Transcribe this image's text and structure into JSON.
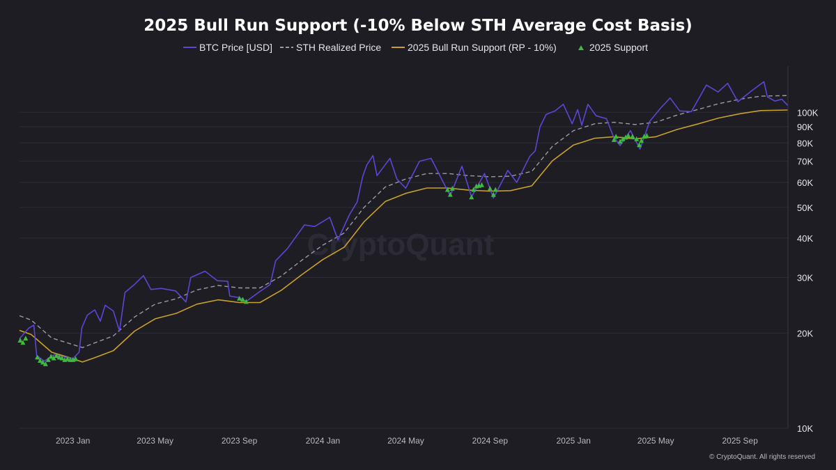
{
  "chart_data": {
    "type": "line",
    "title": "2025 Bull Run Support (-10% Below STH Average Cost Basis)",
    "y_scale": "log",
    "ylim": [
      10000,
      140000
    ],
    "y_ticks": [
      {
        "value": 10000,
        "label": "10K"
      },
      {
        "value": 20000,
        "label": "20K"
      },
      {
        "value": 30000,
        "label": "30K"
      },
      {
        "value": 40000,
        "label": "40K"
      },
      {
        "value": 50000,
        "label": "50K"
      },
      {
        "value": 60000,
        "label": "60K"
      },
      {
        "value": 70000,
        "label": "70K"
      },
      {
        "value": 80000,
        "label": "80K"
      },
      {
        "value": 90000,
        "label": "90K"
      },
      {
        "value": 100000,
        "label": "100K"
      }
    ],
    "xlim": [
      "2022-10-15",
      "2025-11-10"
    ],
    "x_ticks": [
      {
        "date": "2023-01-01",
        "label": "2023 Jan"
      },
      {
        "date": "2023-05-01",
        "label": "2023 May"
      },
      {
        "date": "2023-09-01",
        "label": "2023 Sep"
      },
      {
        "date": "2024-01-01",
        "label": "2024 Jan"
      },
      {
        "date": "2024-05-01",
        "label": "2024 May"
      },
      {
        "date": "2024-09-01",
        "label": "2024 Sep"
      },
      {
        "date": "2025-01-01",
        "label": "2025 Jan"
      },
      {
        "date": "2025-05-01",
        "label": "2025 May"
      },
      {
        "date": "2025-09-01",
        "label": "2025 Sep"
      }
    ],
    "legend_position": "top-center",
    "series": [
      {
        "name": "BTC Price [USD]",
        "color": "#5b47d6",
        "style": "solid",
        "points": [
          [
            "2022-10-15",
            19200
          ],
          [
            "2022-10-28",
            20700
          ],
          [
            "2022-11-05",
            21200
          ],
          [
            "2022-11-09",
            17000
          ],
          [
            "2022-11-20",
            16300
          ],
          [
            "2022-12-05",
            17100
          ],
          [
            "2022-12-20",
            16800
          ],
          [
            "2023-01-01",
            16600
          ],
          [
            "2023-01-10",
            17400
          ],
          [
            "2023-01-14",
            20800
          ],
          [
            "2023-01-22",
            22800
          ],
          [
            "2023-02-02",
            23700
          ],
          [
            "2023-02-10",
            21800
          ],
          [
            "2023-02-17",
            24500
          ],
          [
            "2023-03-01",
            23500
          ],
          [
            "2023-03-10",
            20300
          ],
          [
            "2023-03-18",
            26900
          ],
          [
            "2023-03-31",
            28400
          ],
          [
            "2023-04-14",
            30400
          ],
          [
            "2023-04-25",
            27500
          ],
          [
            "2023-05-10",
            27700
          ],
          [
            "2023-05-31",
            27200
          ],
          [
            "2023-06-15",
            25100
          ],
          [
            "2023-06-22",
            30000
          ],
          [
            "2023-07-13",
            31400
          ],
          [
            "2023-07-31",
            29300
          ],
          [
            "2023-08-15",
            29200
          ],
          [
            "2023-08-18",
            26200
          ],
          [
            "2023-09-01",
            25900
          ],
          [
            "2023-09-11",
            25200
          ],
          [
            "2023-09-30",
            27000
          ],
          [
            "2023-10-16",
            28500
          ],
          [
            "2023-10-24",
            33900
          ],
          [
            "2023-11-10",
            37000
          ],
          [
            "2023-12-05",
            44000
          ],
          [
            "2023-12-20",
            43500
          ],
          [
            "2024-01-11",
            46500
          ],
          [
            "2024-01-23",
            39500
          ],
          [
            "2024-02-09",
            47500
          ],
          [
            "2024-02-20",
            52000
          ],
          [
            "2024-02-28",
            62500
          ],
          [
            "2024-03-05",
            68000
          ],
          [
            "2024-03-14",
            73000
          ],
          [
            "2024-03-20",
            63000
          ],
          [
            "2024-04-08",
            71500
          ],
          [
            "2024-04-18",
            61500
          ],
          [
            "2024-05-01",
            57500
          ],
          [
            "2024-05-21",
            70000
          ],
          [
            "2024-06-07",
            71500
          ],
          [
            "2024-06-24",
            60500
          ],
          [
            "2024-07-05",
            54500
          ],
          [
            "2024-07-22",
            67500
          ],
          [
            "2024-08-05",
            54000
          ],
          [
            "2024-08-24",
            64000
          ],
          [
            "2024-09-06",
            53500
          ],
          [
            "2024-09-27",
            65500
          ],
          [
            "2024-10-10",
            60000
          ],
          [
            "2024-10-29",
            72500
          ],
          [
            "2024-11-06",
            75500
          ],
          [
            "2024-11-13",
            90000
          ],
          [
            "2024-11-22",
            98500
          ],
          [
            "2024-12-05",
            101000
          ],
          [
            "2024-12-17",
            106000
          ],
          [
            "2024-12-30",
            92000
          ],
          [
            "2025-01-07",
            102000
          ],
          [
            "2025-01-13",
            91000
          ],
          [
            "2025-01-22",
            106000
          ],
          [
            "2025-02-03",
            97500
          ],
          [
            "2025-02-18",
            95500
          ],
          [
            "2025-02-28",
            84000
          ],
          [
            "2025-03-10",
            78500
          ],
          [
            "2025-03-25",
            87500
          ],
          [
            "2025-04-08",
            76500
          ],
          [
            "2025-04-22",
            93500
          ],
          [
            "2025-05-08",
            103000
          ],
          [
            "2025-05-22",
            111000
          ],
          [
            "2025-06-05",
            101000
          ],
          [
            "2025-06-22",
            100500
          ],
          [
            "2025-07-14",
            122000
          ],
          [
            "2025-07-31",
            116000
          ],
          [
            "2025-08-14",
            123500
          ],
          [
            "2025-08-29",
            108000
          ],
          [
            "2025-09-18",
            117000
          ],
          [
            "2025-10-06",
            125000
          ],
          [
            "2025-10-11",
            112000
          ],
          [
            "2025-10-22",
            108500
          ],
          [
            "2025-11-01",
            110000
          ],
          [
            "2025-11-10",
            105000
          ]
        ]
      },
      {
        "name": "STH Realized Price",
        "color": "#9b9ba3",
        "style": "dashed",
        "points": [
          [
            "2022-10-15",
            22700
          ],
          [
            "2022-11-01",
            22000
          ],
          [
            "2022-12-01",
            19300
          ],
          [
            "2023-01-01",
            18400
          ],
          [
            "2023-01-15",
            18000
          ],
          [
            "2023-02-01",
            18600
          ],
          [
            "2023-03-01",
            19600
          ],
          [
            "2023-04-01",
            22500
          ],
          [
            "2023-05-01",
            24700
          ],
          [
            "2023-06-01",
            25700
          ],
          [
            "2023-07-01",
            27400
          ],
          [
            "2023-08-01",
            28300
          ],
          [
            "2023-08-20",
            28000
          ],
          [
            "2023-09-01",
            27800
          ],
          [
            "2023-10-01",
            27800
          ],
          [
            "2023-11-01",
            30300
          ],
          [
            "2023-12-01",
            34000
          ],
          [
            "2024-01-01",
            38000
          ],
          [
            "2024-02-01",
            41500
          ],
          [
            "2024-03-01",
            50000
          ],
          [
            "2024-04-01",
            58000
          ],
          [
            "2024-05-01",
            61500
          ],
          [
            "2024-06-01",
            64000
          ],
          [
            "2024-07-01",
            64000
          ],
          [
            "2024-08-01",
            63000
          ],
          [
            "2024-09-01",
            62500
          ],
          [
            "2024-10-01",
            62800
          ],
          [
            "2024-11-01",
            65000
          ],
          [
            "2024-12-01",
            78000
          ],
          [
            "2025-01-01",
            87500
          ],
          [
            "2025-02-01",
            92000
          ],
          [
            "2025-03-01",
            93000
          ],
          [
            "2025-04-01",
            91500
          ],
          [
            "2025-05-01",
            93000
          ],
          [
            "2025-06-01",
            98000
          ],
          [
            "2025-07-01",
            102000
          ],
          [
            "2025-08-01",
            106500
          ],
          [
            "2025-09-01",
            110000
          ],
          [
            "2025-10-01",
            112500
          ],
          [
            "2025-11-10",
            113000
          ]
        ]
      },
      {
        "name": "2025 Bull Run Support (RP - 10%)",
        "color": "#c9a227",
        "style": "solid",
        "points": [
          [
            "2022-10-15",
            20400
          ],
          [
            "2022-11-01",
            19800
          ],
          [
            "2022-12-01",
            17400
          ],
          [
            "2023-01-01",
            16600
          ],
          [
            "2023-01-15",
            16200
          ],
          [
            "2023-02-01",
            16700
          ],
          [
            "2023-03-01",
            17600
          ],
          [
            "2023-04-01",
            20300
          ],
          [
            "2023-05-01",
            22200
          ],
          [
            "2023-06-01",
            23100
          ],
          [
            "2023-07-01",
            24700
          ],
          [
            "2023-08-01",
            25500
          ],
          [
            "2023-08-20",
            25200
          ],
          [
            "2023-09-01",
            25000
          ],
          [
            "2023-10-01",
            25000
          ],
          [
            "2023-11-01",
            27300
          ],
          [
            "2023-12-01",
            30600
          ],
          [
            "2024-01-01",
            34200
          ],
          [
            "2024-02-01",
            37400
          ],
          [
            "2024-03-01",
            45000
          ],
          [
            "2024-04-01",
            52200
          ],
          [
            "2024-05-01",
            55400
          ],
          [
            "2024-06-01",
            57600
          ],
          [
            "2024-07-01",
            57600
          ],
          [
            "2024-08-01",
            56700
          ],
          [
            "2024-09-01",
            56300
          ],
          [
            "2024-10-01",
            56500
          ],
          [
            "2024-11-01",
            58500
          ],
          [
            "2024-12-01",
            70200
          ],
          [
            "2025-01-01",
            78800
          ],
          [
            "2025-02-01",
            82800
          ],
          [
            "2025-03-01",
            83700
          ],
          [
            "2025-04-01",
            82400
          ],
          [
            "2025-05-01",
            83700
          ],
          [
            "2025-06-01",
            88200
          ],
          [
            "2025-07-01",
            91800
          ],
          [
            "2025-08-01",
            95900
          ],
          [
            "2025-09-01",
            99000
          ],
          [
            "2025-10-01",
            101300
          ],
          [
            "2025-11-10",
            101700
          ]
        ]
      },
      {
        "name": "2025 Support",
        "color": "#3fb93f",
        "style": "markers",
        "points": [
          [
            "2022-10-16",
            19000
          ],
          [
            "2022-10-20",
            18700
          ],
          [
            "2022-10-24",
            19300
          ],
          [
            "2022-11-10",
            16800
          ],
          [
            "2022-11-14",
            16400
          ],
          [
            "2022-11-18",
            16200
          ],
          [
            "2022-11-22",
            16000
          ],
          [
            "2022-11-26",
            16500
          ],
          [
            "2022-11-30",
            16900
          ],
          [
            "2022-12-04",
            16700
          ],
          [
            "2022-12-08",
            17000
          ],
          [
            "2022-12-12",
            16800
          ],
          [
            "2022-12-16",
            16700
          ],
          [
            "2022-12-20",
            16500
          ],
          [
            "2022-12-24",
            16600
          ],
          [
            "2022-12-28",
            16500
          ],
          [
            "2023-01-01",
            16500
          ],
          [
            "2023-01-05",
            16600
          ],
          [
            "2023-09-01",
            25800
          ],
          [
            "2023-09-06",
            25600
          ],
          [
            "2023-09-11",
            25200
          ],
          [
            "2024-07-01",
            57000
          ],
          [
            "2024-07-05",
            55000
          ],
          [
            "2024-07-08",
            57500
          ],
          [
            "2024-08-05",
            54000
          ],
          [
            "2024-08-08",
            57000
          ],
          [
            "2024-08-12",
            58500
          ],
          [
            "2024-08-16",
            58700
          ],
          [
            "2024-08-20",
            59000
          ],
          [
            "2024-09-01",
            57500
          ],
          [
            "2024-09-06",
            55000
          ],
          [
            "2024-09-09",
            57000
          ],
          [
            "2025-03-01",
            82000
          ],
          [
            "2025-03-04",
            84000
          ],
          [
            "2025-03-10",
            81000
          ],
          [
            "2025-03-14",
            82500
          ],
          [
            "2025-03-18",
            83500
          ],
          [
            "2025-03-22",
            84500
          ],
          [
            "2025-03-28",
            84000
          ],
          [
            "2025-04-03",
            82500
          ],
          [
            "2025-04-07",
            79000
          ],
          [
            "2025-04-10",
            81500
          ],
          [
            "2025-04-14",
            84000
          ],
          [
            "2025-04-18",
            84500
          ]
        ]
      }
    ]
  },
  "watermark": "CryptoQuant",
  "copyright": "© CryptoQuant. All rights reserved"
}
